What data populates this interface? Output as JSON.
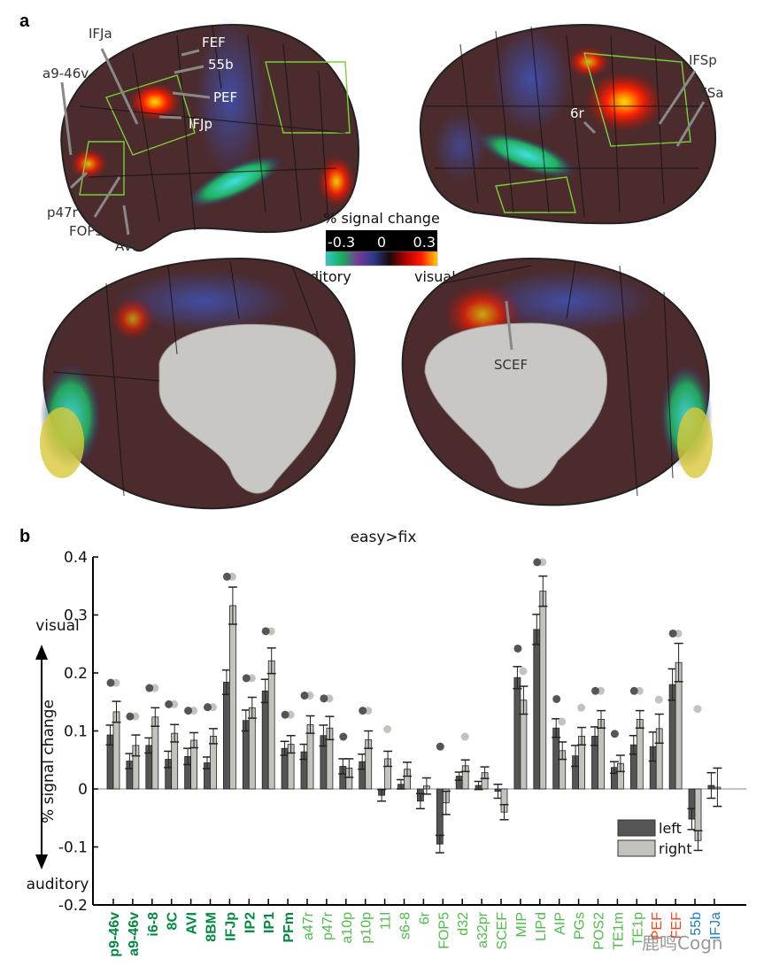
{
  "panel_a": {
    "letter": "a",
    "lateral_left_labels": [
      "IFJa",
      "FEF",
      "55b",
      "PEF",
      "IFJp",
      "a9-46v",
      "p47r",
      "FOP5",
      "AVI"
    ],
    "lateral_right_labels": [
      "IFSp",
      "IFSa",
      "6r"
    ],
    "medial_right_labels": [
      "SCEF"
    ],
    "colorbar": {
      "title": "% signal change",
      "min_label": "-0.3",
      "mid_label": "0",
      "max_label": "0.3",
      "low_end_label": "auditory",
      "high_end_label": "visual",
      "colors": [
        "#35c6c8",
        "#16b05a",
        "#7a3a9a",
        "#2a3a8a",
        "#1a0a0a",
        "#b00000",
        "#ff1a00",
        "#ffd000"
      ]
    }
  },
  "panel_b": {
    "letter": "b",
    "arrow_up_label": "visual",
    "arrow_down_label": "auditory",
    "legend": {
      "left": "left",
      "right": "right"
    },
    "watermark": "鹿鸣Cogn"
  },
  "colors": {
    "left_bar": "#555555",
    "right_bar": "#c4c2bd",
    "dark_green": "#008b3f",
    "light_green": "#4cbd46",
    "orange_red": "#f4471f",
    "blue": "#1a7cc2"
  },
  "chart_data": {
    "type": "bar",
    "title": "easy>fix",
    "xlabel": "",
    "ylabel": "% signal change",
    "ylim": [
      -0.2,
      0.4
    ],
    "yticks": [
      "-0.2",
      "-0.1",
      "0",
      "0.1",
      "0.2",
      "0.3",
      "0.4"
    ],
    "ytick_values": [
      -0.2,
      -0.1,
      0,
      0.1,
      0.2,
      0.3,
      0.4
    ],
    "grid": false,
    "legend_position": "bottom-right",
    "categories": [
      "p9-46v",
      "a9-46v",
      "i6-8",
      "8C",
      "AVI",
      "8BM",
      "IFJp",
      "IP2",
      "IP1",
      "PFm",
      "a47r",
      "p47r",
      "a10p",
      "p10p",
      "11l",
      "s6-8",
      "6r",
      "FOP5",
      "d32",
      "a32pr",
      "SCEF",
      "MIP",
      "LIPd",
      "AIP",
      "PGs",
      "POS2",
      "TE1m",
      "TE1p",
      "PEF",
      "FEF",
      "55b",
      "IFJa"
    ],
    "category_groups": [
      "dark_green",
      "dark_green",
      "dark_green",
      "dark_green",
      "dark_green",
      "dark_green",
      "dark_green",
      "dark_green",
      "dark_green",
      "dark_green",
      "light_green",
      "light_green",
      "light_green",
      "light_green",
      "light_green",
      "light_green",
      "light_green",
      "light_green",
      "light_green",
      "light_green",
      "light_green",
      "light_green",
      "light_green",
      "light_green",
      "light_green",
      "light_green",
      "light_green",
      "light_green",
      "orange_red",
      "orange_red",
      "blue",
      "blue"
    ],
    "series": [
      {
        "name": "left",
        "values": [
          0.093,
          0.048,
          0.075,
          0.051,
          0.056,
          0.045,
          0.184,
          0.118,
          0.169,
          0.07,
          0.064,
          0.092,
          0.039,
          0.047,
          -0.011,
          0.008,
          -0.021,
          -0.095,
          0.022,
          0.006,
          -0.004,
          0.192,
          0.275,
          0.105,
          0.057,
          0.091,
          0.037,
          0.076,
          0.073,
          0.18,
          -0.052,
          0.006
        ],
        "errors": [
          0.017,
          0.013,
          0.013,
          0.014,
          0.014,
          0.01,
          0.021,
          0.018,
          0.02,
          0.012,
          0.013,
          0.018,
          0.013,
          0.013,
          0.01,
          0.008,
          0.013,
          0.015,
          0.007,
          0.007,
          0.012,
          0.019,
          0.026,
          0.016,
          0.018,
          0.016,
          0.01,
          0.016,
          0.025,
          0.027,
          0.018,
          0.022
        ],
        "significant": [
          true,
          true,
          true,
          true,
          true,
          true,
          true,
          true,
          true,
          true,
          true,
          true,
          true,
          true,
          false,
          false,
          false,
          true,
          false,
          false,
          false,
          true,
          true,
          true,
          false,
          true,
          true,
          true,
          false,
          true,
          false,
          false
        ],
        "marker_values": [
          0.183,
          0.125,
          0.174,
          0.146,
          0.135,
          0.141,
          0.366,
          0.191,
          0.272,
          0.128,
          0.161,
          0.156,
          0.09,
          0.135,
          null,
          null,
          null,
          0.073,
          null,
          null,
          null,
          0.242,
          0.391,
          0.155,
          null,
          0.169,
          0.095,
          0.169,
          null,
          0.268,
          null,
          null
        ]
      },
      {
        "name": "right",
        "values": [
          0.133,
          0.075,
          0.124,
          0.096,
          0.084,
          0.091,
          0.316,
          0.14,
          0.221,
          0.077,
          0.111,
          0.105,
          0.036,
          0.085,
          0.052,
          0.034,
          0.005,
          -0.024,
          0.04,
          0.028,
          -0.04,
          0.153,
          0.341,
          0.066,
          0.091,
          0.12,
          0.044,
          0.12,
          0.104,
          0.218,
          -0.089,
          0.003
        ],
        "errors": [
          0.018,
          0.018,
          0.016,
          0.015,
          0.013,
          0.013,
          0.032,
          0.018,
          0.022,
          0.015,
          0.015,
          0.02,
          0.016,
          0.015,
          0.013,
          0.012,
          0.014,
          0.02,
          0.01,
          0.01,
          0.013,
          0.024,
          0.026,
          0.015,
          0.015,
          0.015,
          0.014,
          0.015,
          0.025,
          0.033,
          0.017,
          0.033
        ],
        "significant": [
          true,
          true,
          true,
          true,
          true,
          true,
          true,
          true,
          true,
          true,
          true,
          true,
          false,
          true,
          true,
          false,
          false,
          false,
          true,
          false,
          false,
          true,
          true,
          true,
          true,
          true,
          false,
          true,
          true,
          true,
          true,
          false
        ],
        "marker_values": [
          0.183,
          0.125,
          0.174,
          0.146,
          0.135,
          0.141,
          0.366,
          0.191,
          0.272,
          0.128,
          0.161,
          0.156,
          null,
          0.135,
          0.103,
          null,
          null,
          null,
          0.09,
          null,
          null,
          0.203,
          0.391,
          0.116,
          0.14,
          0.169,
          null,
          0.169,
          0.154,
          0.268,
          0.138,
          null
        ]
      }
    ]
  }
}
